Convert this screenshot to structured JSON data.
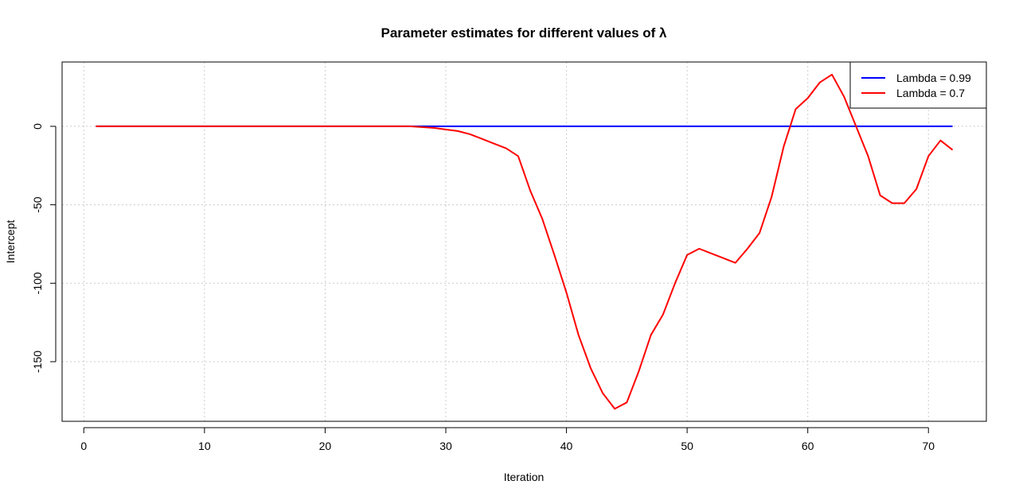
{
  "chart_data": {
    "type": "line",
    "title": "Parameter estimates for different values of λ",
    "xlabel": "Iteration",
    "ylabel": "Intercept",
    "xlim": [
      -1.8,
      74.8
    ],
    "ylim": [
      -188,
      41
    ],
    "x_ticks": [
      0,
      10,
      20,
      30,
      40,
      50,
      60,
      70
    ],
    "y_ticks": [
      0,
      -50,
      -100,
      -150
    ],
    "grid": true,
    "legend_position": "top-right",
    "series": [
      {
        "name": "Lambda = 0.99",
        "color": "#0000ff",
        "points": [
          [
            1,
            0
          ],
          [
            72,
            0
          ]
        ]
      },
      {
        "name": "Lambda = 0.7",
        "color": "#ff0000",
        "points": [
          [
            1,
            0
          ],
          [
            5,
            0
          ],
          [
            10,
            0
          ],
          [
            15,
            0
          ],
          [
            20,
            0
          ],
          [
            25,
            0
          ],
          [
            27,
            0
          ],
          [
            28,
            -0.5
          ],
          [
            29,
            -1
          ],
          [
            30,
            -2
          ],
          [
            31,
            -3
          ],
          [
            32,
            -5
          ],
          [
            33,
            -8
          ],
          [
            34,
            -11
          ],
          [
            35,
            -14
          ],
          [
            36,
            -19
          ],
          [
            37,
            -41
          ],
          [
            38,
            -59
          ],
          [
            39,
            -82
          ],
          [
            40,
            -106
          ],
          [
            41,
            -133
          ],
          [
            42,
            -154
          ],
          [
            43,
            -170
          ],
          [
            44,
            -180
          ],
          [
            45,
            -176
          ],
          [
            46,
            -156
          ],
          [
            47,
            -133
          ],
          [
            48,
            -120
          ],
          [
            49,
            -100
          ],
          [
            50,
            -82
          ],
          [
            51,
            -78
          ],
          [
            52,
            -81
          ],
          [
            53,
            -84
          ],
          [
            54,
            -87
          ],
          [
            55,
            -78
          ],
          [
            56,
            -68
          ],
          [
            57,
            -45
          ],
          [
            58,
            -13
          ],
          [
            59,
            11
          ],
          [
            60,
            18
          ],
          [
            61,
            28
          ],
          [
            62,
            33
          ],
          [
            63,
            19
          ],
          [
            64,
            0
          ],
          [
            65,
            -19
          ],
          [
            66,
            -44
          ],
          [
            67,
            -49
          ],
          [
            68,
            -49
          ],
          [
            69,
            -40
          ],
          [
            70,
            -19
          ],
          [
            71,
            -9
          ],
          [
            72,
            -15
          ]
        ]
      }
    ]
  }
}
